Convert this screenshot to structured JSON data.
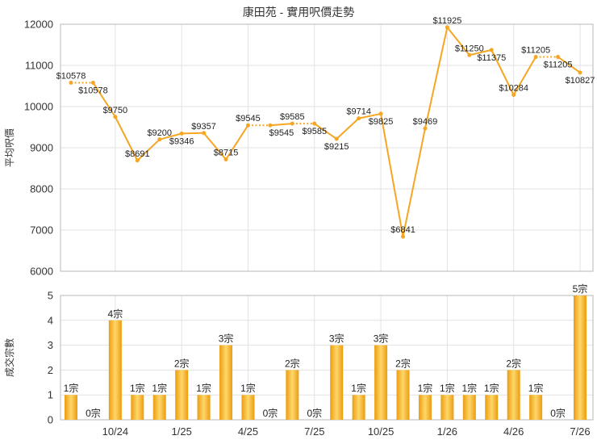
{
  "chart_data": [
    {
      "type": "line",
      "title": "康田苑 - 實用呎價走勢",
      "ylabel": "平均呎價",
      "ylim": [
        6000,
        12000
      ],
      "yticks": [
        6000,
        7000,
        8000,
        9000,
        10000,
        11000,
        12000
      ],
      "grid": true,
      "series": [
        {
          "color": "#f5a623",
          "values": [
            10578,
            10578,
            9750,
            8691,
            9200,
            9346,
            9357,
            8715,
            9545,
            9545,
            9585,
            9585,
            9215,
            9714,
            9825,
            6841,
            9469,
            11925,
            11250,
            11375,
            10284,
            11205,
            11205,
            10827
          ],
          "data_labels": [
            "$10578",
            "$10578",
            "$9750",
            "$8691",
            "$9200",
            "$9346",
            "$9357",
            "$8715",
            "$9545",
            "$9545",
            "$9585",
            "$9585",
            "$9215",
            "$9714",
            "$9825",
            "$6841",
            "$9469",
            "$11925",
            "$11250",
            "$11375",
            "$10284",
            "$11205",
            "$11205",
            "$10827"
          ]
        }
      ]
    },
    {
      "type": "bar",
      "ylabel": "成交宗數",
      "ylim": [
        0,
        5
      ],
      "yticks": [
        0,
        1,
        2,
        3,
        4,
        5
      ],
      "xtick_labels": [
        "10/24",
        "1/25",
        "4/25",
        "7/25",
        "10/25",
        "1/26",
        "4/26",
        "7/26"
      ],
      "grid": true,
      "series": [
        {
          "color": "#eb9c10",
          "values": [
            1,
            0,
            4,
            1,
            1,
            2,
            1,
            3,
            1,
            0,
            2,
            0,
            3,
            1,
            3,
            2,
            1,
            1,
            1,
            1,
            2,
            1,
            0,
            5
          ],
          "data_labels": [
            "1宗",
            "0宗",
            "4宗",
            "1宗",
            "1宗",
            "2宗",
            "1宗",
            "3宗",
            "1宗",
            "0宗",
            "2宗",
            "0宗",
            "3宗",
            "1宗",
            "3宗",
            "2宗",
            "1宗",
            "1宗",
            "1宗",
            "1宗",
            "2宗",
            "1宗",
            "0宗",
            "5宗"
          ]
        }
      ]
    }
  ]
}
